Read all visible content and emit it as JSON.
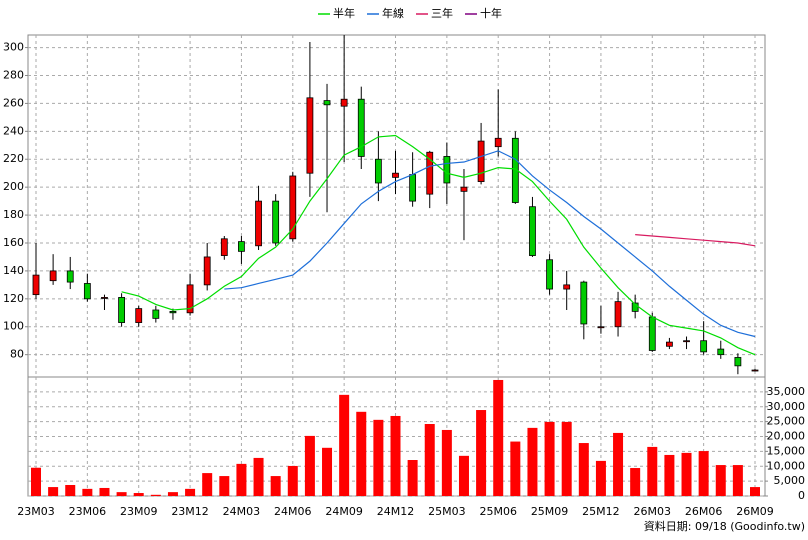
{
  "chart_data": [
    {
      "type": "candlestick",
      "legend_position": "top",
      "grid": true,
      "up_color": "#ee0000",
      "down_color": "#00cc00",
      "categories": [
        "23M03",
        null,
        null,
        "23M06",
        null,
        null,
        "23M09",
        null,
        null,
        "23M12",
        null,
        null,
        "24M03",
        null,
        null,
        "24M06",
        null,
        null,
        "24M09",
        null,
        null,
        "24M12",
        null,
        null,
        "25M03",
        null,
        null,
        "25M06",
        null,
        null,
        "25M09",
        null,
        null,
        "25M12",
        null,
        null,
        "26M03",
        null,
        null,
        "26M06",
        null,
        null,
        "26M09"
      ],
      "open": [
        123,
        133,
        140,
        131,
        121,
        121,
        103,
        112,
        111,
        110,
        130,
        151,
        161,
        158,
        190,
        163,
        210,
        262,
        258,
        263,
        220,
        207,
        209,
        195,
        222,
        197,
        204,
        229,
        235,
        186,
        148,
        127,
        132,
        100,
        100,
        117,
        107,
        86,
        90,
        90,
        84,
        78,
        69
      ],
      "high": [
        160,
        152,
        150,
        138,
        123,
        124,
        115,
        115,
        113,
        138,
        160,
        165,
        165,
        201,
        195,
        211,
        304,
        274,
        309,
        272,
        240,
        226,
        225,
        226,
        232,
        213,
        246,
        270,
        240,
        193,
        152,
        140,
        133,
        115,
        125,
        123,
        110,
        92,
        93,
        104,
        90,
        81,
        70
      ],
      "low": [
        120,
        130,
        127,
        118,
        112,
        100,
        100,
        103,
        105,
        108,
        126,
        148,
        145,
        155,
        158,
        161,
        193,
        182,
        218,
        213,
        190,
        195,
        186,
        185,
        188,
        162,
        202,
        222,
        188,
        150,
        123,
        112,
        91,
        95,
        93,
        106,
        82,
        84,
        84,
        80,
        77,
        66,
        68
      ],
      "close": [
        137,
        140,
        132,
        120,
        121,
        103,
        113,
        106,
        110,
        130,
        150,
        163,
        154,
        190,
        160,
        208,
        264,
        259,
        263,
        222,
        203,
        210,
        190,
        225,
        203,
        200,
        233,
        235,
        189,
        151,
        127,
        130,
        102,
        100,
        118,
        111,
        83,
        89,
        90,
        82,
        80,
        72,
        69
      ],
      "series": [
        {
          "name": "半年",
          "color": "#00dd00",
          "values": [
            null,
            null,
            null,
            null,
            null,
            125,
            122,
            116,
            112,
            113,
            120,
            129,
            136,
            149,
            157,
            170,
            190,
            206,
            223,
            229,
            236,
            237,
            229,
            220,
            210,
            207,
            210,
            214,
            213,
            204,
            190,
            177,
            157,
            142,
            128,
            116,
            107,
            101,
            99,
            97,
            92,
            85,
            80
          ]
        },
        {
          "name": "年線",
          "color": "#1e6fd9",
          "values": [
            null,
            null,
            null,
            null,
            null,
            null,
            null,
            null,
            null,
            null,
            null,
            127,
            128,
            131,
            134,
            137,
            147,
            160,
            174,
            188,
            197,
            204,
            209,
            215,
            217,
            218,
            222,
            226,
            220,
            208,
            198,
            189,
            179,
            170,
            160,
            150,
            140,
            129,
            119,
            109,
            101,
            96,
            93
          ]
        },
        {
          "name": "三年",
          "color": "#d81b60",
          "values": [
            null,
            null,
            null,
            null,
            null,
            null,
            null,
            null,
            null,
            null,
            null,
            null,
            null,
            null,
            null,
            null,
            null,
            null,
            null,
            null,
            null,
            null,
            null,
            null,
            null,
            null,
            null,
            null,
            null,
            null,
            null,
            null,
            null,
            null,
            null,
            166,
            165,
            164,
            163,
            162,
            161,
            160,
            158
          ]
        },
        {
          "name": "十年",
          "color": "#800080",
          "values": [
            null,
            null,
            null,
            null,
            null,
            null,
            null,
            null,
            null,
            null,
            null,
            null,
            null,
            null,
            null,
            null,
            null,
            null,
            null,
            null,
            null,
            null,
            null,
            null,
            null,
            null,
            null,
            null,
            null,
            null,
            null,
            null,
            null,
            null,
            null,
            null,
            null,
            null,
            null,
            null,
            null,
            null,
            null
          ]
        }
      ],
      "ylim": [
        64,
        309
      ],
      "yticks": [
        80,
        100,
        120,
        140,
        160,
        180,
        200,
        220,
        240,
        260,
        280,
        300
      ]
    },
    {
      "type": "bar",
      "color": "#ff0000",
      "grid": true,
      "values": [
        9500,
        3000,
        3700,
        2400,
        2700,
        1300,
        1000,
        400,
        1300,
        2400,
        7700,
        6700,
        10800,
        12800,
        6700,
        10100,
        20200,
        16200,
        34000,
        28300,
        25600,
        26900,
        12100,
        24200,
        22200,
        13500,
        28900,
        39000,
        18300,
        22900,
        24900,
        24900,
        17800,
        11800,
        21200,
        9400,
        16500,
        13800,
        14500,
        15100,
        10400,
        10400,
        3000
      ],
      "ylim": [
        0,
        40000
      ],
      "yticks": [
        0,
        {
          "value": 5000,
          "label": "5,000"
        },
        {
          "value": 10000,
          "label": "10,000"
        },
        {
          "value": 15000,
          "label": "15,000"
        },
        {
          "value": 20000,
          "label": "20,000"
        },
        {
          "value": 25000,
          "label": "25,000"
        },
        {
          "value": 30000,
          "label": "30,000"
        },
        {
          "value": 35000,
          "label": "35,000"
        }
      ]
    }
  ],
  "footer": "資料日期: 09/18 (Goodinfo.tw)"
}
